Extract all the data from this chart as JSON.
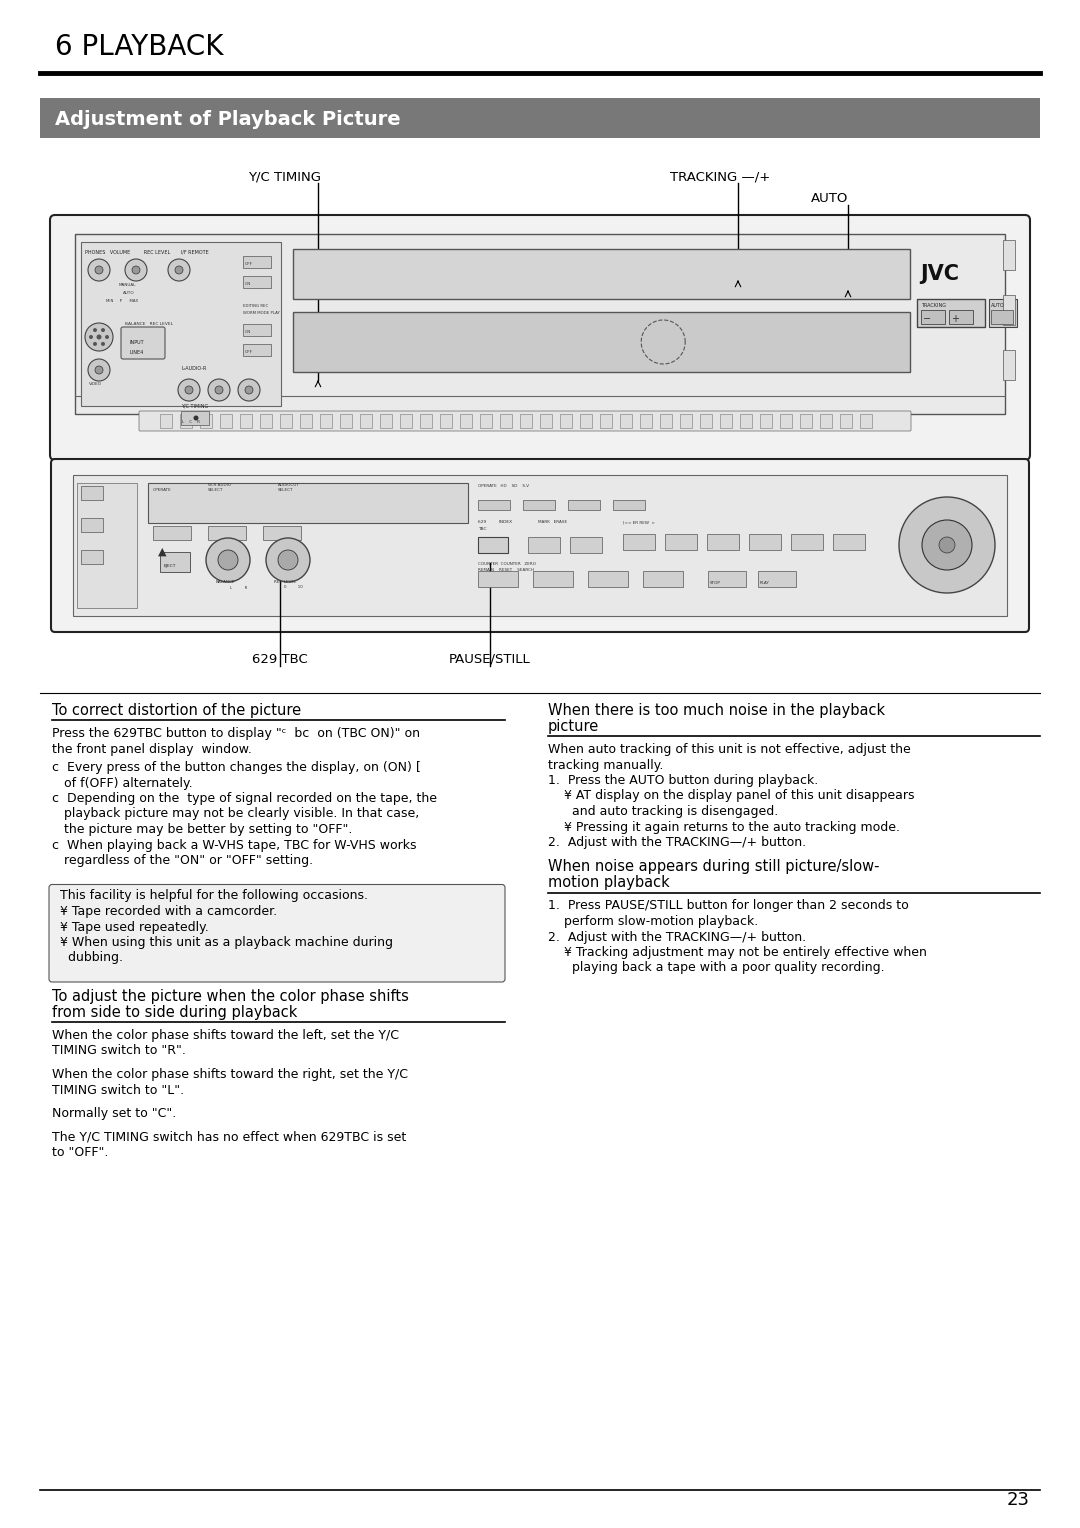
{
  "page_title": "6 PLAYBACK",
  "section_title": "Adjustment of Playback Picture",
  "section_bg": "#787878",
  "section_text_color": "#ffffff",
  "page_number": "23",
  "label_yc_timing": "Y/C TIMING",
  "label_tracking": "TRACKING —/+",
  "label_auto": "AUTO",
  "label_629tbc": "629 TBC",
  "label_pause_still": "PAUSE/STILL",
  "left_col_heading": "To correct distortion of the picture",
  "left_col_body_p1": "Press the 629TBC button to display \"ᶜ  bc  on (TBC ON)\" on",
  "left_col_body_p1b": "the front panel display  window.",
  "left_col_body_bullets": [
    "c  Every press of the button changes the display, on (ON) [",
    "   of f(OFF) alternately.",
    "c  Depending on the  type of signal recorded on the tape, the",
    "   playback picture may not be clearly visible. In that case,",
    "   the picture may be better by setting to \"OFF\".",
    "c  When playing back a W-VHS tape, TBC for W-VHS works",
    "   regardless of the \"ON\" or \"OFF\" setting."
  ],
  "box_lines": [
    "This facility is helpful for the following occasions.",
    "¥ Tape recorded with a camcorder.",
    "¥ Tape used repeatedly.",
    "¥ When using this unit as a playback machine during",
    "  dubbing."
  ],
  "left_col_heading2": "To adjust the picture when the color phase shifts",
  "left_col_heading2b": "from side to side during playback",
  "left_col_body2": [
    "When the color phase shifts toward the left, set the Y/C",
    "TIMING switch to \"R\".",
    "",
    "When the color phase shifts toward the right, set the Y/C",
    "TIMING switch to \"L\".",
    "",
    "Normally set to \"C\".",
    "",
    "The Y/C TIMING switch has no effect when 629TBC is set",
    "to \"OFF\"."
  ],
  "right_col_heading1": "When there is too much noise in the playback",
  "right_col_heading1b": "picture",
  "right_col_body1_intro": [
    "When auto tracking of this unit is not effective, adjust the",
    "tracking manually."
  ],
  "right_col_body1_num": [
    "1.  Press the AUTO button during playback.",
    "    ¥ AT display on the display panel of this unit disappears",
    "      and auto tracking is disengaged.",
    "    ¥ Pressing it again returns to the auto tracking mode.",
    "2.  Adjust with the TRACKING—/+ button."
  ],
  "right_col_heading2": "When noise appears during still picture/slow-",
  "right_col_heading2b": "motion playback",
  "right_col_body2": [
    "1.  Press PAUSE/STILL button for longer than 2 seconds to",
    "    perform slow-motion playback.",
    "2.  Adjust with the TRACKING—/+ button.",
    "    ¥ Tracking adjustment may not be entirely effective when",
    "      playing back a tape with a poor quality recording."
  ],
  "bg_color": "#ffffff",
  "text_color": "#000000",
  "font_size_body": 9.0,
  "font_size_heading": 10.5,
  "font_size_title": 20,
  "font_size_section": 14,
  "font_size_label": 9.5
}
